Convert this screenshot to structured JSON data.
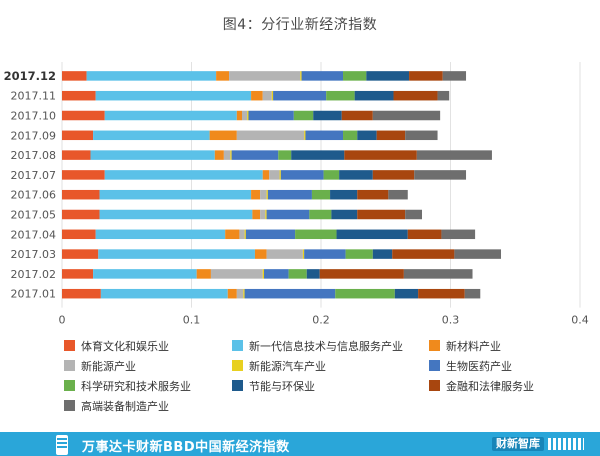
{
  "chart_data": {
    "type": "bar",
    "orientation": "horizontal",
    "stacked": true,
    "title": "图4：分行业新经济指数",
    "categories": [
      "2017.12",
      "2017.11",
      "2017.10",
      "2017.09",
      "2017.08",
      "2017.07",
      "2017.06",
      "2017.05",
      "2017.04",
      "2017.03",
      "2017.02",
      "2017.01"
    ],
    "xlim": [
      0,
      0.4
    ],
    "xticks": [
      "0",
      "0.1",
      "0.2",
      "0.3",
      "0.4"
    ],
    "grid": true,
    "legend_position": "bottom",
    "series": [
      {
        "name": "体育文化和娱乐业",
        "color": "#e8572a",
        "values": [
          0.019,
          0.026,
          0.033,
          0.024,
          0.022,
          0.033,
          0.029,
          0.029,
          0.026,
          0.028,
          0.024,
          0.03
        ]
      },
      {
        "name": "新一代信息技术与信息服务产业",
        "color": "#5bc1e8",
        "values": [
          0.1,
          0.12,
          0.102,
          0.09,
          0.096,
          0.122,
          0.117,
          0.118,
          0.1,
          0.121,
          0.08,
          0.098
        ]
      },
      {
        "name": "新材料产业",
        "color": "#f08a1c",
        "values": [
          0.01,
          0.009,
          0.004,
          0.021,
          0.007,
          0.005,
          0.007,
          0.006,
          0.011,
          0.009,
          0.011,
          0.007
        ]
      },
      {
        "name": "新能源产业",
        "color": "#b4b4b4",
        "values": [
          0.055,
          0.007,
          0.004,
          0.052,
          0.005,
          0.008,
          0.005,
          0.004,
          0.004,
          0.028,
          0.04,
          0.005
        ]
      },
      {
        "name": "新能源汽车产业",
        "color": "#e8d020",
        "values": [
          0.001,
          0.001,
          0.001,
          0.001,
          0.001,
          0.001,
          0.001,
          0.001,
          0.001,
          0.001,
          0.001,
          0.001
        ]
      },
      {
        "name": "生物医药产业",
        "color": "#4476c0",
        "values": [
          0.032,
          0.041,
          0.035,
          0.029,
          0.036,
          0.033,
          0.034,
          0.033,
          0.038,
          0.032,
          0.019,
          0.07
        ]
      },
      {
        "name": "科学研究和技术服务业",
        "color": "#6ab04c",
        "values": [
          0.018,
          0.022,
          0.015,
          0.011,
          0.01,
          0.012,
          0.014,
          0.017,
          0.032,
          0.021,
          0.014,
          0.046
        ]
      },
      {
        "name": "节能与环保业",
        "color": "#1e5a8c",
        "values": [
          0.033,
          0.03,
          0.022,
          0.015,
          0.041,
          0.026,
          0.021,
          0.02,
          0.055,
          0.015,
          0.01,
          0.018
        ]
      },
      {
        "name": "金融和法律服务业",
        "color": "#a8460f",
        "values": [
          0.026,
          0.034,
          0.024,
          0.022,
          0.056,
          0.032,
          0.024,
          0.037,
          0.026,
          0.048,
          0.065,
          0.036
        ]
      },
      {
        "name": "高端装备制造产业",
        "color": "#6e6e6e",
        "values": [
          0.018,
          0.009,
          0.052,
          0.025,
          0.058,
          0.04,
          0.015,
          0.013,
          0.026,
          0.036,
          0.053,
          0.012
        ]
      }
    ]
  },
  "footer": {
    "text": "万事达卡财新BBD中国新经济指数",
    "brand": "财新智库"
  }
}
